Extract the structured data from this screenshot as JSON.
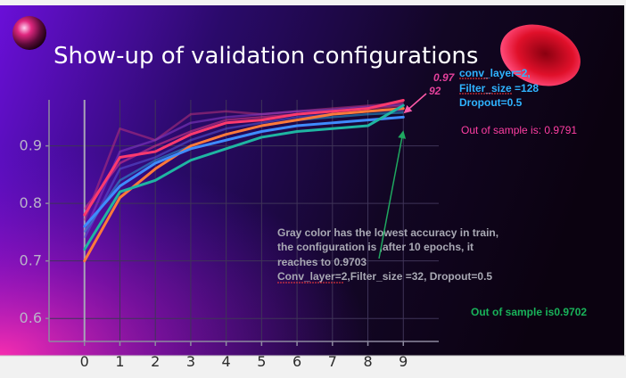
{
  "slide": {
    "title": "Show-up of validation configurations"
  },
  "annotations": {
    "best_value_line1": "0.97",
    "best_value_line2": "92",
    "best_config_line1": "conv_layer=2,",
    "best_config_line2": "Filter_size =128",
    "best_config_line3": "Dropout=0.5",
    "best_out_of_sample": "Out of sample is: 0.9791",
    "gray_line1": "Gray color has the lowest accuracy in train,",
    "gray_line2": "the configuration is  ,after 10 epochs, it",
    "gray_line3": "reaches to 0.9703",
    "gray_line4": "Conv_layer=2,Filter_size =32, Dropout=0.5",
    "gray_out_of_sample": "Out of sample is0.9702"
  },
  "colors": {
    "background_left": "#6a0fd8",
    "background_right": "#0b0210",
    "best_annotation": "#2fb3ff",
    "out_of_sample_pink": "#ff3fa3",
    "out_of_sample_green": "#19b35a",
    "arrow_green": "#1fa860",
    "arrow_pink": "#ff5aa8"
  },
  "chart_data": {
    "type": "line",
    "x": [
      0,
      1,
      2,
      3,
      4,
      5,
      6,
      7,
      8,
      9
    ],
    "xlim": [
      -1,
      10
    ],
    "ylim": [
      0.56,
      0.98
    ],
    "yticks": [
      0.6,
      0.7,
      0.8,
      0.9
    ],
    "ytick_labels": [
      "0.6",
      "0.7",
      "0.8",
      "0.9"
    ],
    "xtick_labels": [
      "0",
      "1",
      "2",
      "3",
      "4",
      "5",
      "6",
      "7",
      "8",
      "9"
    ],
    "grid": true,
    "series": [
      {
        "color": "#ff3a6e",
        "values": [
          0.78,
          0.88,
          0.89,
          0.92,
          0.94,
          0.945,
          0.955,
          0.96,
          0.965,
          0.9792
        ],
        "emphasis": true
      },
      {
        "color": "#ff7a3a",
        "values": [
          0.7,
          0.81,
          0.86,
          0.9,
          0.92,
          0.935,
          0.945,
          0.955,
          0.96,
          0.965
        ],
        "emphasis": true
      },
      {
        "color": "#3f8cff",
        "values": [
          0.76,
          0.83,
          0.87,
          0.895,
          0.91,
          0.925,
          0.935,
          0.94,
          0.945,
          0.95
        ],
        "emphasis": true
      },
      {
        "color": "#1fb5a2",
        "values": [
          0.72,
          0.82,
          0.84,
          0.875,
          0.895,
          0.915,
          0.925,
          0.93,
          0.935,
          0.9703
        ],
        "emphasis": true
      },
      {
        "color": "#e23a8a",
        "values": [
          0.79,
          0.87,
          0.9,
          0.925,
          0.945,
          0.95,
          0.955,
          0.96,
          0.965,
          0.97
        ],
        "emphasis": false
      },
      {
        "color": "#b8327a",
        "values": [
          0.77,
          0.93,
          0.91,
          0.955,
          0.96,
          0.955,
          0.96,
          0.965,
          0.97,
          0.975
        ],
        "emphasis": false
      },
      {
        "color": "#8a3cc8",
        "values": [
          0.75,
          0.89,
          0.91,
          0.94,
          0.95,
          0.955,
          0.96,
          0.963,
          0.968,
          0.972
        ],
        "emphasis": false
      },
      {
        "color": "#5a56d8",
        "values": [
          0.74,
          0.86,
          0.88,
          0.91,
          0.93,
          0.94,
          0.95,
          0.955,
          0.96,
          0.962
        ],
        "emphasis": false
      },
      {
        "color": "#2a9fd8",
        "values": [
          0.75,
          0.84,
          0.875,
          0.9,
          0.92,
          0.935,
          0.945,
          0.95,
          0.955,
          0.958
        ],
        "emphasis": false
      }
    ]
  }
}
